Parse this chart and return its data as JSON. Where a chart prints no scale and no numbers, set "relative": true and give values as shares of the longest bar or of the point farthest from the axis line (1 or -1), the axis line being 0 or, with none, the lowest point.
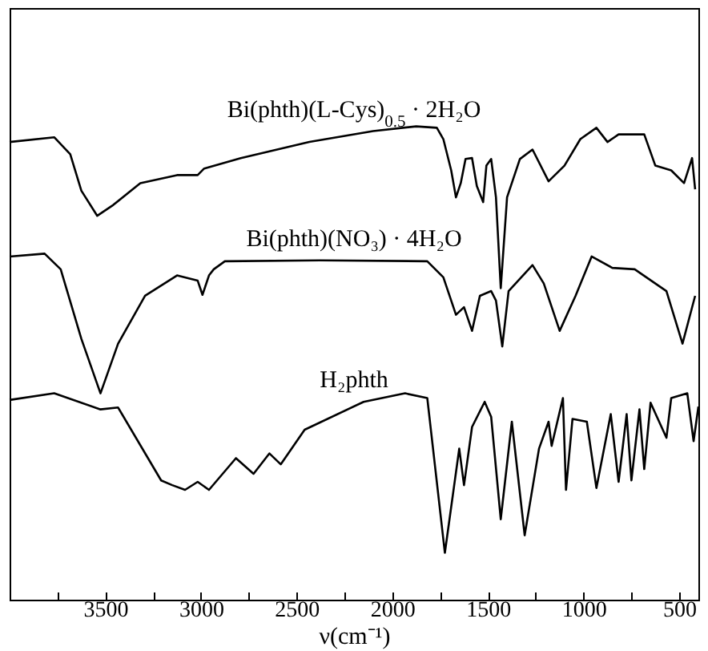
{
  "chart_data": {
    "type": "line",
    "relative": true,
    "xlabel": "ν(cm⁻¹)",
    "xlim": [
      4000,
      400
    ],
    "xticks": [
      {
        "value": 3750,
        "label": null
      },
      3500,
      {
        "value": 3250,
        "label": null
      },
      3000,
      {
        "value": 2750,
        "label": null
      },
      2500,
      {
        "value": 2250,
        "label": null
      },
      2000,
      {
        "value": 1750,
        "label": null
      },
      1500,
      {
        "value": 1250,
        "label": null
      },
      1000,
      {
        "value": 750,
        "label": null
      },
      500
    ],
    "grid": false,
    "legend": false,
    "marker": "none",
    "line_style": "solid",
    "series": [
      {
        "name": "Bi(phth)(L-Cys)$_{0.5}$ · 2H₂O",
        "color": "#000000",
        "x": [
          4000,
          3767,
          3683,
          3625,
          3542,
          3458,
          3317,
          3125,
          3017,
          2983,
          2792,
          2433,
          2100,
          1875,
          1767,
          1733,
          1692,
          1667,
          1642,
          1617,
          1583,
          1558,
          1525,
          1508,
          1483,
          1458,
          1433,
          1400,
          1333,
          1267,
          1183,
          1100,
          1017,
          933,
          875,
          817,
          683,
          625,
          542,
          475,
          433,
          417
        ],
        "values": [
          0.967,
          0.977,
          0.941,
          0.864,
          0.811,
          0.834,
          0.88,
          0.897,
          0.897,
          0.911,
          0.933,
          0.967,
          0.99,
          1,
          0.997,
          0.973,
          0.907,
          0.85,
          0.88,
          0.931,
          0.933,
          0.874,
          0.84,
          0.917,
          0.931,
          0.85,
          0.658,
          0.85,
          0.931,
          0.951,
          0.884,
          0.917,
          0.973,
          0.997,
          0.967,
          0.983,
          0.983,
          0.917,
          0.907,
          0.88,
          0.933,
          0.867
        ]
      },
      {
        "name": "Bi(phth)(NO₃) · 4H₂O",
        "color": "#000000",
        "x": [
          4000,
          3817,
          3733,
          3625,
          3525,
          3433,
          3292,
          3125,
          3017,
          2992,
          2958,
          2933,
          2875,
          2375,
          1817,
          1733,
          1667,
          1625,
          1583,
          1542,
          1483,
          1458,
          1425,
          1392,
          1267,
          1208,
          1125,
          1042,
          958,
          850,
          733,
          567,
          483,
          417
        ],
        "values": [
          0.725,
          0.731,
          0.698,
          0.551,
          0.436,
          0.541,
          0.642,
          0.685,
          0.674,
          0.644,
          0.685,
          0.698,
          0.715,
          0.717,
          0.715,
          0.681,
          0.602,
          0.618,
          0.568,
          0.642,
          0.652,
          0.632,
          0.535,
          0.652,
          0.707,
          0.668,
          0.568,
          0.642,
          0.725,
          0.701,
          0.698,
          0.652,
          0.541,
          0.642
        ]
      },
      {
        "name": "H₂phth",
        "color": "#000000",
        "x": [
          4000,
          3767,
          3525,
          3433,
          3208,
          3150,
          3083,
          3017,
          2958,
          2817,
          2725,
          2642,
          2583,
          2458,
          2150,
          1933,
          1817,
          1725,
          1650,
          1625,
          1583,
          1517,
          1483,
          1433,
          1375,
          1308,
          1233,
          1183,
          1167,
          1108,
          1092,
          1058,
          983,
          933,
          858,
          817,
          775,
          750,
          708,
          683,
          650,
          567,
          542,
          458,
          425,
          400
        ],
        "values": [
          0.422,
          0.436,
          0.402,
          0.406,
          0.252,
          0.242,
          0.232,
          0.249,
          0.232,
          0.299,
          0.266,
          0.309,
          0.286,
          0.359,
          0.418,
          0.436,
          0.426,
          0.099,
          0.319,
          0.242,
          0.365,
          0.418,
          0.386,
          0.17,
          0.376,
          0.136,
          0.319,
          0.376,
          0.325,
          0.426,
          0.232,
          0.382,
          0.376,
          0.236,
          0.392,
          0.249,
          0.392,
          0.252,
          0.402,
          0.276,
          0.416,
          0.342,
          0.426,
          0.436,
          0.335,
          0.408
        ]
      }
    ]
  }
}
